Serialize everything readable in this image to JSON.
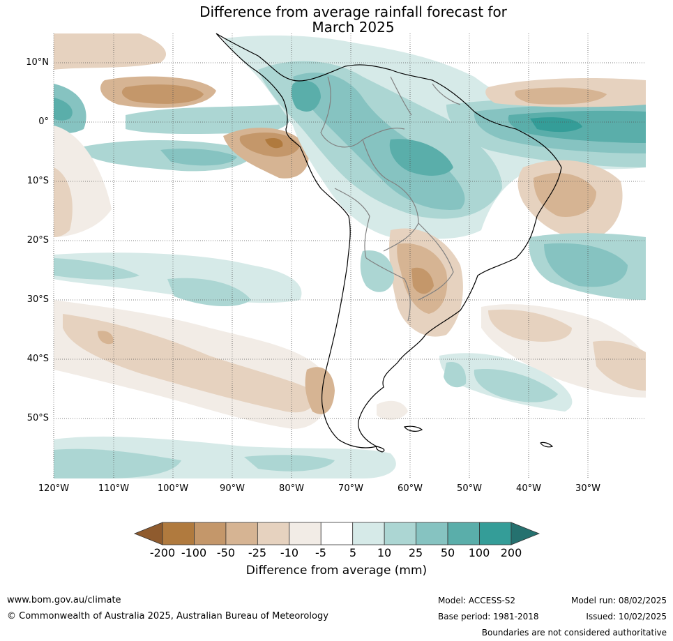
{
  "title": {
    "line1": "Difference from average rainfall forecast for",
    "line2": "March 2025"
  },
  "map": {
    "lat_labels": [
      "10°N",
      "0°",
      "10°S",
      "20°S",
      "30°S",
      "40°S",
      "50°S"
    ],
    "lon_labels": [
      "120°W",
      "110°W",
      "100°W",
      "90°W",
      "80°W",
      "70°W",
      "60°W",
      "50°W",
      "40°W",
      "30°W"
    ],
    "anomaly_colors": {
      "dry_strong": "#b07a3e",
      "dry_mid": "#c4976a",
      "dry_light": "#d6b493",
      "dry_faint": "#e6d2bf",
      "dry_trace": "#f2ece6",
      "neutral": "#ffffff",
      "wet_trace": "#d6eae8",
      "wet_light": "#acd6d3",
      "wet_mid": "#86c3c1",
      "wet_strong": "#5aaeaa",
      "wet_very": "#349d98"
    }
  },
  "colorbar": {
    "labels": [
      "-200",
      "-100",
      "-50",
      "-25",
      "-10",
      "-5",
      "5",
      "10",
      "25",
      "50",
      "100",
      "200"
    ],
    "colors": [
      "#8f5b2e",
      "#b07a3e",
      "#c4976a",
      "#d6b493",
      "#e6d2bf",
      "#f2ece6",
      "#ffffff",
      "#d6eae8",
      "#acd6d3",
      "#86c3c1",
      "#5aaeaa",
      "#349d98",
      "#25716f"
    ],
    "title": "Difference from average (mm)"
  },
  "footer": {
    "website": "www.bom.gov.au/climate",
    "copyright": "© Commonwealth of Australia 2025, Australian Bureau of Meteorology",
    "model": "Model: ACCESS-S2",
    "base_period": "Base period: 1981-2018",
    "model_run": "Model run: 08/02/2025",
    "issued": "Issued: 10/02/2025",
    "disclaimer": "Boundaries are not considered authoritative"
  }
}
